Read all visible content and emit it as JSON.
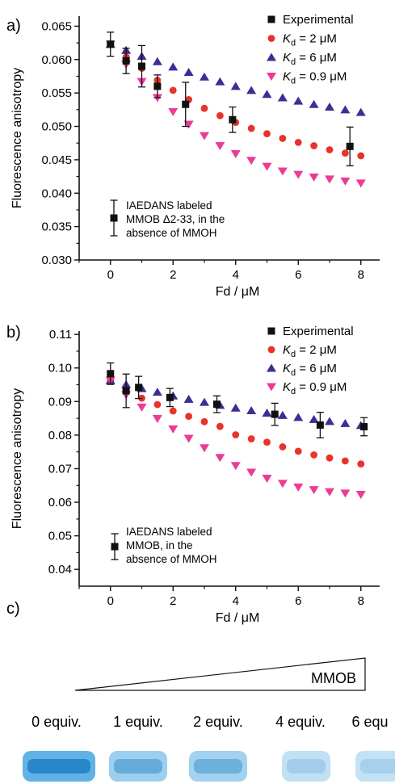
{
  "panel_labels": {
    "a": "a)",
    "b": "b)",
    "c": "c)"
  },
  "colors": {
    "experimental": "#111111",
    "kd2": "#e8322a",
    "kd6": "#3b2f93",
    "kd09": "#ec3b96",
    "gel_band": "#3aa0de",
    "gel_band_dark": "#1f7fc4"
  },
  "legend_text": {
    "experimental": "Experimental",
    "kd2_italic": "K",
    "kd2_sub": "d",
    "kd2_rest": " = 2 μM",
    "kd6_italic": "K",
    "kd6_sub": "d",
    "kd6_rest": " = 6 μM",
    "kd09_italic": "K",
    "kd09_sub": "d",
    "kd09_rest": " = 0.9 μM"
  },
  "chart_data": [
    {
      "type": "scatter",
      "panel": "a)",
      "xlabel": "Fd / μM",
      "ylabel": "Fluorescence anisotropy",
      "xlim": [
        -1,
        8.6
      ],
      "ylim": [
        0.03,
        0.0665
      ],
      "xticks": [
        0,
        2,
        4,
        6,
        8
      ],
      "xtick_labels": [
        "0",
        "2",
        "4",
        "6",
        "8"
      ],
      "yticks": [
        0.03,
        0.035,
        0.04,
        0.045,
        0.05,
        0.055,
        0.06,
        0.065
      ],
      "ytick_labels": [
        "0.030",
        "0.035",
        "0.040",
        "0.045",
        "0.050",
        "0.055",
        "0.060",
        "0.065"
      ],
      "legend_position": "top-right",
      "annotation": [
        "IAEDANS labeled",
        "MMOB Δ2-33, in the",
        "absence of MMOH"
      ],
      "series": [
        {
          "name": "Experimental",
          "marker": "square",
          "x": [
            0,
            0.5,
            1.0,
            1.5,
            2.4,
            3.9,
            7.65
          ],
          "y": [
            0.0623,
            0.0598,
            0.059,
            0.056,
            0.0533,
            0.051,
            0.047
          ],
          "err": [
            0.0018,
            0.0019,
            0.0031,
            0.0017,
            0.0033,
            0.0019,
            0.0029
          ]
        },
        {
          "name": "Kd = 2 μM",
          "marker": "circle",
          "x": [
            0,
            0.5,
            1.0,
            1.5,
            2.0,
            2.5,
            3.0,
            3.5,
            4.0,
            4.5,
            5.0,
            5.5,
            6.0,
            6.5,
            7.0,
            7.5,
            8.0
          ],
          "y": [
            0.0623,
            0.0604,
            0.0587,
            0.0569,
            0.0554,
            0.054,
            0.0527,
            0.0516,
            0.0506,
            0.0497,
            0.0489,
            0.0482,
            0.0476,
            0.0471,
            0.0465,
            0.046,
            0.0456
          ]
        },
        {
          "name": "Kd = 6 μM",
          "marker": "triangle-up",
          "x": [
            0,
            0.5,
            1.0,
            1.5,
            2.0,
            2.5,
            3.0,
            3.5,
            4.0,
            4.5,
            5.0,
            5.5,
            6.0,
            6.5,
            7.0,
            7.5,
            8.0
          ],
          "y": [
            0.0623,
            0.0614,
            0.0605,
            0.0597,
            0.0589,
            0.0581,
            0.0574,
            0.0567,
            0.056,
            0.0554,
            0.0548,
            0.0543,
            0.0538,
            0.0533,
            0.0529,
            0.0525,
            0.0521
          ]
        },
        {
          "name": "Kd = 0.9 μM",
          "marker": "triangle-down",
          "x": [
            0,
            0.5,
            1.0,
            1.5,
            2.0,
            2.5,
            3.0,
            3.5,
            4.0,
            4.5,
            5.0,
            5.5,
            6.0,
            6.5,
            7.0,
            7.5,
            8.0
          ],
          "y": [
            0.0623,
            0.0593,
            0.0567,
            0.0543,
            0.0522,
            0.0503,
            0.0486,
            0.0471,
            0.0459,
            0.0449,
            0.044,
            0.0433,
            0.0428,
            0.0424,
            0.0421,
            0.0418,
            0.0415
          ]
        }
      ]
    },
    {
      "type": "scatter",
      "panel": "b)",
      "xlabel": "Fd / μM",
      "ylabel": "Fluorescence anisotropy",
      "xlim": [
        -1,
        8.6
      ],
      "ylim": [
        0.035,
        0.111
      ],
      "xticks": [
        0,
        2,
        4,
        6,
        8
      ],
      "xtick_labels": [
        "0",
        "2",
        "4",
        "6",
        "8"
      ],
      "yticks": [
        0.04,
        0.05,
        0.06,
        0.07,
        0.08,
        0.09,
        0.1,
        0.11
      ],
      "ytick_labels": [
        "0.04",
        "0.05",
        "0.06",
        "0.07",
        "0.08",
        "0.09",
        "0.10",
        "0.11"
      ],
      "legend_position": "top-right",
      "annotation": [
        "IAEDANS labeled",
        "MMOB, in the",
        "absence of MMOH"
      ],
      "series": [
        {
          "name": "Experimental",
          "marker": "square",
          "x": [
            0,
            0.5,
            0.9,
            1.9,
            3.4,
            5.25,
            6.7,
            8.1
          ],
          "y": [
            0.0983,
            0.0932,
            0.0942,
            0.0912,
            0.0892,
            0.0862,
            0.083,
            0.0825
          ],
          "err": [
            0.0032,
            0.005,
            0.0033,
            0.0027,
            0.0025,
            0.0033,
            0.0038,
            0.0027
          ]
        },
        {
          "name": "Kd = 2 μM",
          "marker": "circle",
          "x": [
            0,
            0.5,
            1.0,
            1.5,
            2.0,
            2.5,
            3.0,
            3.5,
            4.0,
            4.5,
            5.0,
            5.5,
            6.0,
            6.5,
            7.0,
            7.5,
            8.0
          ],
          "y": [
            0.0963,
            0.0935,
            0.091,
            0.0891,
            0.0872,
            0.0856,
            0.084,
            0.0826,
            0.0801,
            0.0789,
            0.0779,
            0.0765,
            0.0752,
            0.0741,
            0.0732,
            0.0723,
            0.0714
          ]
        },
        {
          "name": "Kd = 6 μM",
          "marker": "triangle-up",
          "x": [
            0,
            0.5,
            1.0,
            1.5,
            2.0,
            2.5,
            3.0,
            3.5,
            4.0,
            4.5,
            5.0,
            5.5,
            6.0,
            6.5,
            7.0,
            7.5,
            8.0
          ],
          "y": [
            0.0963,
            0.0951,
            0.0939,
            0.0928,
            0.0917,
            0.0907,
            0.0898,
            0.0889,
            0.0881,
            0.0873,
            0.0866,
            0.0859,
            0.0853,
            0.0847,
            0.0841,
            0.0835,
            0.0829
          ]
        },
        {
          "name": "Kd = 0.9 μM",
          "marker": "triangle-down",
          "x": [
            0,
            0.5,
            1.0,
            1.5,
            2.0,
            2.5,
            3.0,
            3.5,
            4.0,
            4.5,
            5.0,
            5.5,
            6.0,
            6.5,
            7.0,
            7.5,
            8.0
          ],
          "y": [
            0.0963,
            0.092,
            0.0883,
            0.0849,
            0.0818,
            0.079,
            0.0762,
            0.0733,
            0.0709,
            0.0689,
            0.0671,
            0.0656,
            0.0645,
            0.0637,
            0.0631,
            0.0627,
            0.0623
          ]
        }
      ]
    }
  ],
  "gel": {
    "wedge_label": "MMOB",
    "lanes": [
      {
        "label": "0 equiv.",
        "intensity": 1.0
      },
      {
        "label": "1 equiv.",
        "intensity": 0.45
      },
      {
        "label": "2 equiv.",
        "intensity": 0.4
      },
      {
        "label": "4 equiv.",
        "intensity": 0.12
      },
      {
        "label": "6 equ",
        "intensity": 0.1
      }
    ]
  }
}
